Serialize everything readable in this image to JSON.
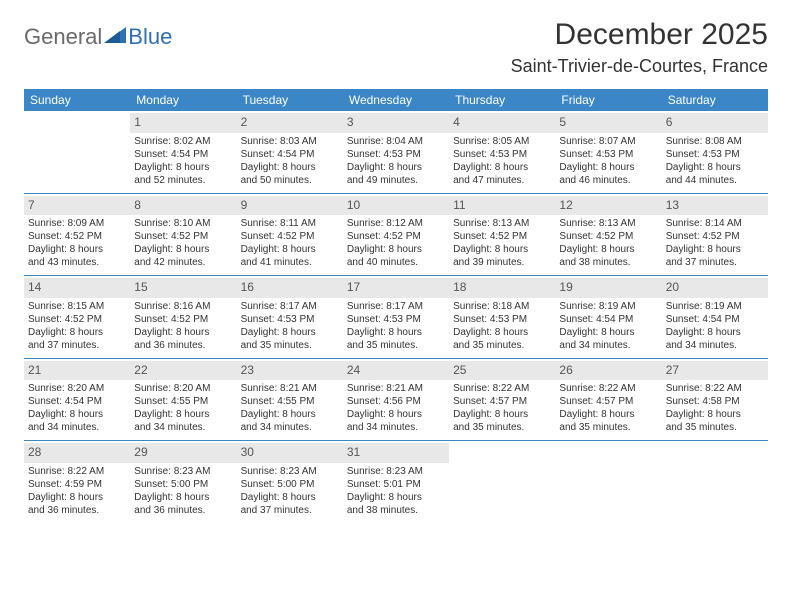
{
  "logo": {
    "textGeneral": "General",
    "textBlue": "Blue"
  },
  "title": "December 2025",
  "location": "Saint-Trivier-de-Courtes, France",
  "colors": {
    "headerBg": "#3b86c6",
    "headerText": "#ffffff",
    "dayNumBg": "#e8e8e8",
    "rowDivider": "#3b86c6",
    "bodyText": "#333333",
    "logoGray": "#6a6a6a",
    "logoBlue": "#2f6fb3"
  },
  "typography": {
    "titleSize": 30,
    "locationSize": 18,
    "weekdaySize": 12,
    "cellSize": 10
  },
  "weekdays": [
    "Sunday",
    "Monday",
    "Tuesday",
    "Wednesday",
    "Thursday",
    "Friday",
    "Saturday"
  ],
  "weeks": [
    [
      {
        "day": "",
        "sunrise": "",
        "sunset": "",
        "daylight1": "",
        "daylight2": ""
      },
      {
        "day": "1",
        "sunrise": "Sunrise: 8:02 AM",
        "sunset": "Sunset: 4:54 PM",
        "daylight1": "Daylight: 8 hours",
        "daylight2": "and 52 minutes."
      },
      {
        "day": "2",
        "sunrise": "Sunrise: 8:03 AM",
        "sunset": "Sunset: 4:54 PM",
        "daylight1": "Daylight: 8 hours",
        "daylight2": "and 50 minutes."
      },
      {
        "day": "3",
        "sunrise": "Sunrise: 8:04 AM",
        "sunset": "Sunset: 4:53 PM",
        "daylight1": "Daylight: 8 hours",
        "daylight2": "and 49 minutes."
      },
      {
        "day": "4",
        "sunrise": "Sunrise: 8:05 AM",
        "sunset": "Sunset: 4:53 PM",
        "daylight1": "Daylight: 8 hours",
        "daylight2": "and 47 minutes."
      },
      {
        "day": "5",
        "sunrise": "Sunrise: 8:07 AM",
        "sunset": "Sunset: 4:53 PM",
        "daylight1": "Daylight: 8 hours",
        "daylight2": "and 46 minutes."
      },
      {
        "day": "6",
        "sunrise": "Sunrise: 8:08 AM",
        "sunset": "Sunset: 4:53 PM",
        "daylight1": "Daylight: 8 hours",
        "daylight2": "and 44 minutes."
      }
    ],
    [
      {
        "day": "7",
        "sunrise": "Sunrise: 8:09 AM",
        "sunset": "Sunset: 4:52 PM",
        "daylight1": "Daylight: 8 hours",
        "daylight2": "and 43 minutes."
      },
      {
        "day": "8",
        "sunrise": "Sunrise: 8:10 AM",
        "sunset": "Sunset: 4:52 PM",
        "daylight1": "Daylight: 8 hours",
        "daylight2": "and 42 minutes."
      },
      {
        "day": "9",
        "sunrise": "Sunrise: 8:11 AM",
        "sunset": "Sunset: 4:52 PM",
        "daylight1": "Daylight: 8 hours",
        "daylight2": "and 41 minutes."
      },
      {
        "day": "10",
        "sunrise": "Sunrise: 8:12 AM",
        "sunset": "Sunset: 4:52 PM",
        "daylight1": "Daylight: 8 hours",
        "daylight2": "and 40 minutes."
      },
      {
        "day": "11",
        "sunrise": "Sunrise: 8:13 AM",
        "sunset": "Sunset: 4:52 PM",
        "daylight1": "Daylight: 8 hours",
        "daylight2": "and 39 minutes."
      },
      {
        "day": "12",
        "sunrise": "Sunrise: 8:13 AM",
        "sunset": "Sunset: 4:52 PM",
        "daylight1": "Daylight: 8 hours",
        "daylight2": "and 38 minutes."
      },
      {
        "day": "13",
        "sunrise": "Sunrise: 8:14 AM",
        "sunset": "Sunset: 4:52 PM",
        "daylight1": "Daylight: 8 hours",
        "daylight2": "and 37 minutes."
      }
    ],
    [
      {
        "day": "14",
        "sunrise": "Sunrise: 8:15 AM",
        "sunset": "Sunset: 4:52 PM",
        "daylight1": "Daylight: 8 hours",
        "daylight2": "and 37 minutes."
      },
      {
        "day": "15",
        "sunrise": "Sunrise: 8:16 AM",
        "sunset": "Sunset: 4:52 PM",
        "daylight1": "Daylight: 8 hours",
        "daylight2": "and 36 minutes."
      },
      {
        "day": "16",
        "sunrise": "Sunrise: 8:17 AM",
        "sunset": "Sunset: 4:53 PM",
        "daylight1": "Daylight: 8 hours",
        "daylight2": "and 35 minutes."
      },
      {
        "day": "17",
        "sunrise": "Sunrise: 8:17 AM",
        "sunset": "Sunset: 4:53 PM",
        "daylight1": "Daylight: 8 hours",
        "daylight2": "and 35 minutes."
      },
      {
        "day": "18",
        "sunrise": "Sunrise: 8:18 AM",
        "sunset": "Sunset: 4:53 PM",
        "daylight1": "Daylight: 8 hours",
        "daylight2": "and 35 minutes."
      },
      {
        "day": "19",
        "sunrise": "Sunrise: 8:19 AM",
        "sunset": "Sunset: 4:54 PM",
        "daylight1": "Daylight: 8 hours",
        "daylight2": "and 34 minutes."
      },
      {
        "day": "20",
        "sunrise": "Sunrise: 8:19 AM",
        "sunset": "Sunset: 4:54 PM",
        "daylight1": "Daylight: 8 hours",
        "daylight2": "and 34 minutes."
      }
    ],
    [
      {
        "day": "21",
        "sunrise": "Sunrise: 8:20 AM",
        "sunset": "Sunset: 4:54 PM",
        "daylight1": "Daylight: 8 hours",
        "daylight2": "and 34 minutes."
      },
      {
        "day": "22",
        "sunrise": "Sunrise: 8:20 AM",
        "sunset": "Sunset: 4:55 PM",
        "daylight1": "Daylight: 8 hours",
        "daylight2": "and 34 minutes."
      },
      {
        "day": "23",
        "sunrise": "Sunrise: 8:21 AM",
        "sunset": "Sunset: 4:55 PM",
        "daylight1": "Daylight: 8 hours",
        "daylight2": "and 34 minutes."
      },
      {
        "day": "24",
        "sunrise": "Sunrise: 8:21 AM",
        "sunset": "Sunset: 4:56 PM",
        "daylight1": "Daylight: 8 hours",
        "daylight2": "and 34 minutes."
      },
      {
        "day": "25",
        "sunrise": "Sunrise: 8:22 AM",
        "sunset": "Sunset: 4:57 PM",
        "daylight1": "Daylight: 8 hours",
        "daylight2": "and 35 minutes."
      },
      {
        "day": "26",
        "sunrise": "Sunrise: 8:22 AM",
        "sunset": "Sunset: 4:57 PM",
        "daylight1": "Daylight: 8 hours",
        "daylight2": "and 35 minutes."
      },
      {
        "day": "27",
        "sunrise": "Sunrise: 8:22 AM",
        "sunset": "Sunset: 4:58 PM",
        "daylight1": "Daylight: 8 hours",
        "daylight2": "and 35 minutes."
      }
    ],
    [
      {
        "day": "28",
        "sunrise": "Sunrise: 8:22 AM",
        "sunset": "Sunset: 4:59 PM",
        "daylight1": "Daylight: 8 hours",
        "daylight2": "and 36 minutes."
      },
      {
        "day": "29",
        "sunrise": "Sunrise: 8:23 AM",
        "sunset": "Sunset: 5:00 PM",
        "daylight1": "Daylight: 8 hours",
        "daylight2": "and 36 minutes."
      },
      {
        "day": "30",
        "sunrise": "Sunrise: 8:23 AM",
        "sunset": "Sunset: 5:00 PM",
        "daylight1": "Daylight: 8 hours",
        "daylight2": "and 37 minutes."
      },
      {
        "day": "31",
        "sunrise": "Sunrise: 8:23 AM",
        "sunset": "Sunset: 5:01 PM",
        "daylight1": "Daylight: 8 hours",
        "daylight2": "and 38 minutes."
      },
      {
        "day": "",
        "sunrise": "",
        "sunset": "",
        "daylight1": "",
        "daylight2": ""
      },
      {
        "day": "",
        "sunrise": "",
        "sunset": "",
        "daylight1": "",
        "daylight2": ""
      },
      {
        "day": "",
        "sunrise": "",
        "sunset": "",
        "daylight1": "",
        "daylight2": ""
      }
    ]
  ]
}
